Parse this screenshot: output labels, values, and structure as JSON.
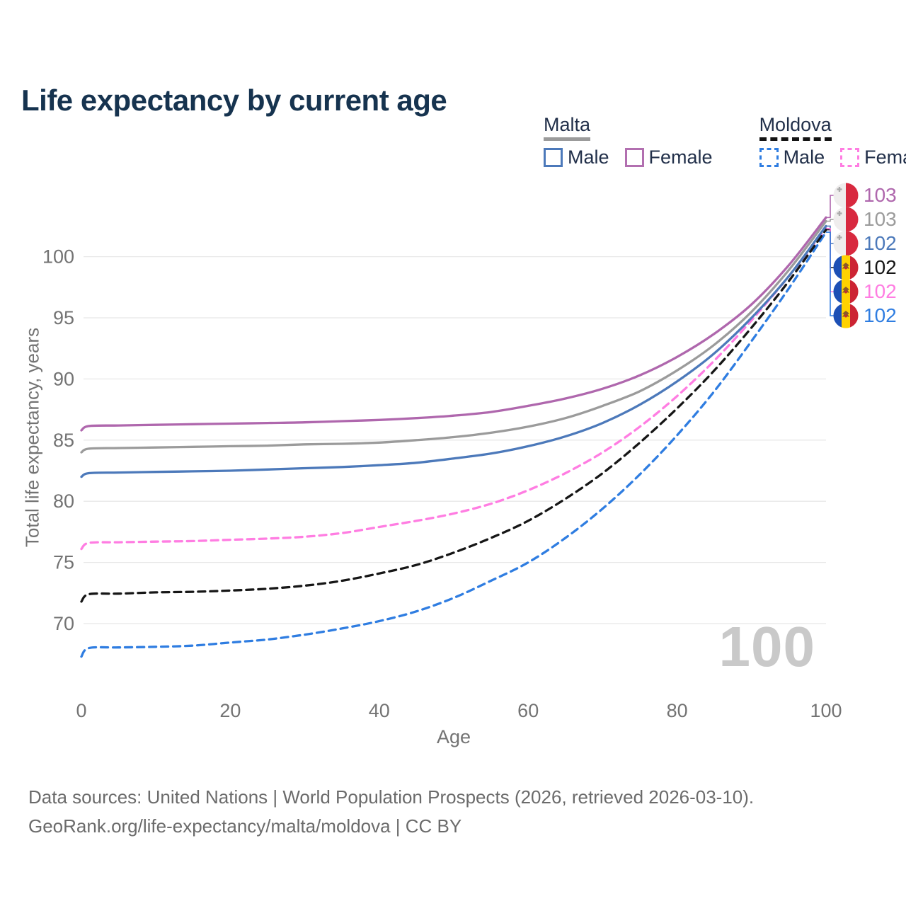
{
  "page": {
    "title": "Life expectancy by current age"
  },
  "legend": {
    "groups": [
      {
        "name": "Malta",
        "line_style": "solid",
        "underline_color": "#9b9b9b",
        "items": [
          {
            "label": "Male",
            "color": "#4c79ba",
            "dashed": false
          },
          {
            "label": "Female",
            "color": "#b26fb0",
            "dashed": false
          }
        ]
      },
      {
        "name": "Moldova",
        "line_style": "dashed",
        "underline_color": "#141414",
        "items": [
          {
            "label": "Male",
            "color": "#2f7de1",
            "dashed": true
          },
          {
            "label": "Female",
            "color": "#ff7de2",
            "dashed": true
          }
        ]
      }
    ]
  },
  "chart_data": {
    "type": "line",
    "title": "Life expectancy by current age",
    "xlabel": "Age",
    "ylabel": "Total life expectancy, years",
    "xlim": [
      0,
      100
    ],
    "ylim": [
      66,
      104
    ],
    "xticks": [
      0,
      20,
      40,
      60,
      80,
      100
    ],
    "yticks": [
      70,
      75,
      80,
      85,
      90,
      95,
      100
    ],
    "grid": "horizontal",
    "legend_position": "top-right",
    "watermark": "100",
    "x": [
      0,
      1,
      5,
      10,
      15,
      20,
      25,
      30,
      35,
      40,
      45,
      50,
      55,
      60,
      65,
      70,
      75,
      80,
      85,
      90,
      95,
      100
    ],
    "series": [
      {
        "name": "Malta Female",
        "country": "Malta",
        "sex": "Female",
        "color": "#af67ad",
        "dash": "solid",
        "flag": "malta",
        "end_label": "103",
        "values": [
          85.8,
          86.15,
          86.2,
          86.25,
          86.3,
          86.35,
          86.4,
          86.45,
          86.55,
          86.65,
          86.8,
          87.0,
          87.3,
          87.8,
          88.4,
          89.2,
          90.3,
          91.8,
          93.7,
          96.1,
          99.3,
          103.2
        ]
      },
      {
        "name": "Malta",
        "country": "Malta",
        "sex": "Both",
        "color": "#9b9b9b",
        "dash": "solid",
        "flag": "malta",
        "end_label": "103",
        "values": [
          84.0,
          84.3,
          84.35,
          84.4,
          84.45,
          84.5,
          84.55,
          84.65,
          84.7,
          84.8,
          85.0,
          85.25,
          85.6,
          86.1,
          86.8,
          87.8,
          89.0,
          90.7,
          92.8,
          95.5,
          98.9,
          102.9
        ]
      },
      {
        "name": "Malta Male",
        "country": "Malta",
        "sex": "Male",
        "color": "#4c79ba",
        "dash": "solid",
        "flag": "malta",
        "end_label": "102",
        "values": [
          82.0,
          82.3,
          82.35,
          82.4,
          82.45,
          82.5,
          82.6,
          82.7,
          82.8,
          82.95,
          83.15,
          83.5,
          83.9,
          84.5,
          85.3,
          86.4,
          87.9,
          89.8,
          92.1,
          95.0,
          98.4,
          102.5
        ]
      },
      {
        "name": "Moldova",
        "country": "Moldova",
        "sex": "Both",
        "color": "#161616",
        "dash": "dashed",
        "flag": "moldova",
        "end_label": "102",
        "values": [
          71.8,
          72.4,
          72.45,
          72.55,
          72.6,
          72.7,
          72.85,
          73.1,
          73.5,
          74.1,
          74.8,
          75.8,
          77.0,
          78.4,
          80.2,
          82.3,
          84.8,
          87.6,
          90.7,
          94.2,
          98.0,
          102.2
        ]
      },
      {
        "name": "Moldova Female",
        "country": "Moldova",
        "sex": "Female",
        "color": "#ff7de2",
        "dash": "dashed",
        "flag": "moldova",
        "end_label": "102",
        "values": [
          76.1,
          76.6,
          76.65,
          76.7,
          76.75,
          76.85,
          76.95,
          77.1,
          77.4,
          77.9,
          78.4,
          79.0,
          79.8,
          80.9,
          82.3,
          84.0,
          86.1,
          88.6,
          91.5,
          94.8,
          98.4,
          102.3
        ]
      },
      {
        "name": "Moldova Male",
        "country": "Moldova",
        "sex": "Male",
        "color": "#2f7de1",
        "dash": "dashed",
        "flag": "moldova",
        "end_label": "102",
        "values": [
          67.3,
          68.0,
          68.05,
          68.1,
          68.2,
          68.45,
          68.7,
          69.1,
          69.6,
          70.2,
          71.0,
          72.1,
          73.5,
          75.0,
          77.0,
          79.4,
          82.2,
          85.4,
          89.0,
          93.1,
          97.4,
          102.0
        ]
      }
    ],
    "flag_colors": {
      "malta": {
        "left": "#efeded",
        "right": "#d8293f",
        "cross": "#ababab"
      },
      "moldova": {
        "blue": "#1d50b5",
        "yellow": "#ffd200",
        "red": "#cc2433",
        "emblem": "#8a5a28",
        "emblem_accent": "#c03030"
      }
    },
    "axis_color": "#737373",
    "grid_color": "#e8e8e8"
  },
  "footer": {
    "line1": "Data sources: United Nations | World Population Prospects (2026, retrieved 2026-03-10).",
    "line2": "GeoRank.org/life-expectancy/malta/moldova | CC BY"
  }
}
